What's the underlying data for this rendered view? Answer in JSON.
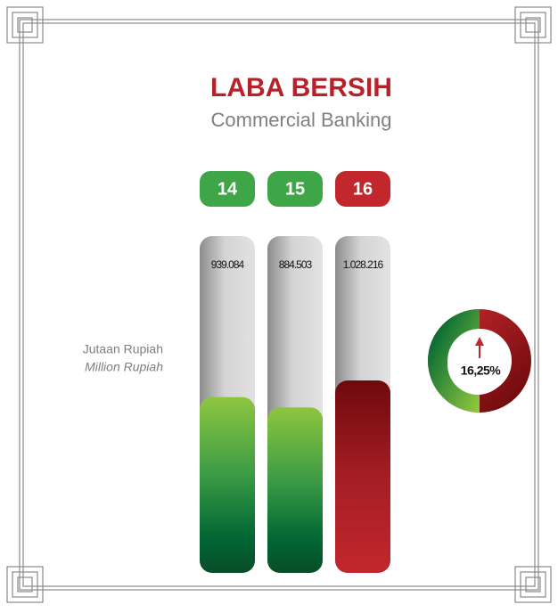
{
  "chart_data": {
    "type": "bar",
    "title": "LABA BERSIH",
    "subtitle": "Commercial Banking",
    "y_label": "Jutaan Rupiah",
    "y_label_en": "Million Rupiah",
    "categories": [
      "14",
      "15",
      "16"
    ],
    "values": [
      939084,
      884503,
      1028216
    ],
    "value_labels": [
      "939.084",
      "884.503",
      "1.028.216"
    ],
    "colors": [
      "#3fa648",
      "#3fa648",
      "#c1272d"
    ],
    "growth": {
      "value": 16.25,
      "label": "16,25%"
    }
  }
}
